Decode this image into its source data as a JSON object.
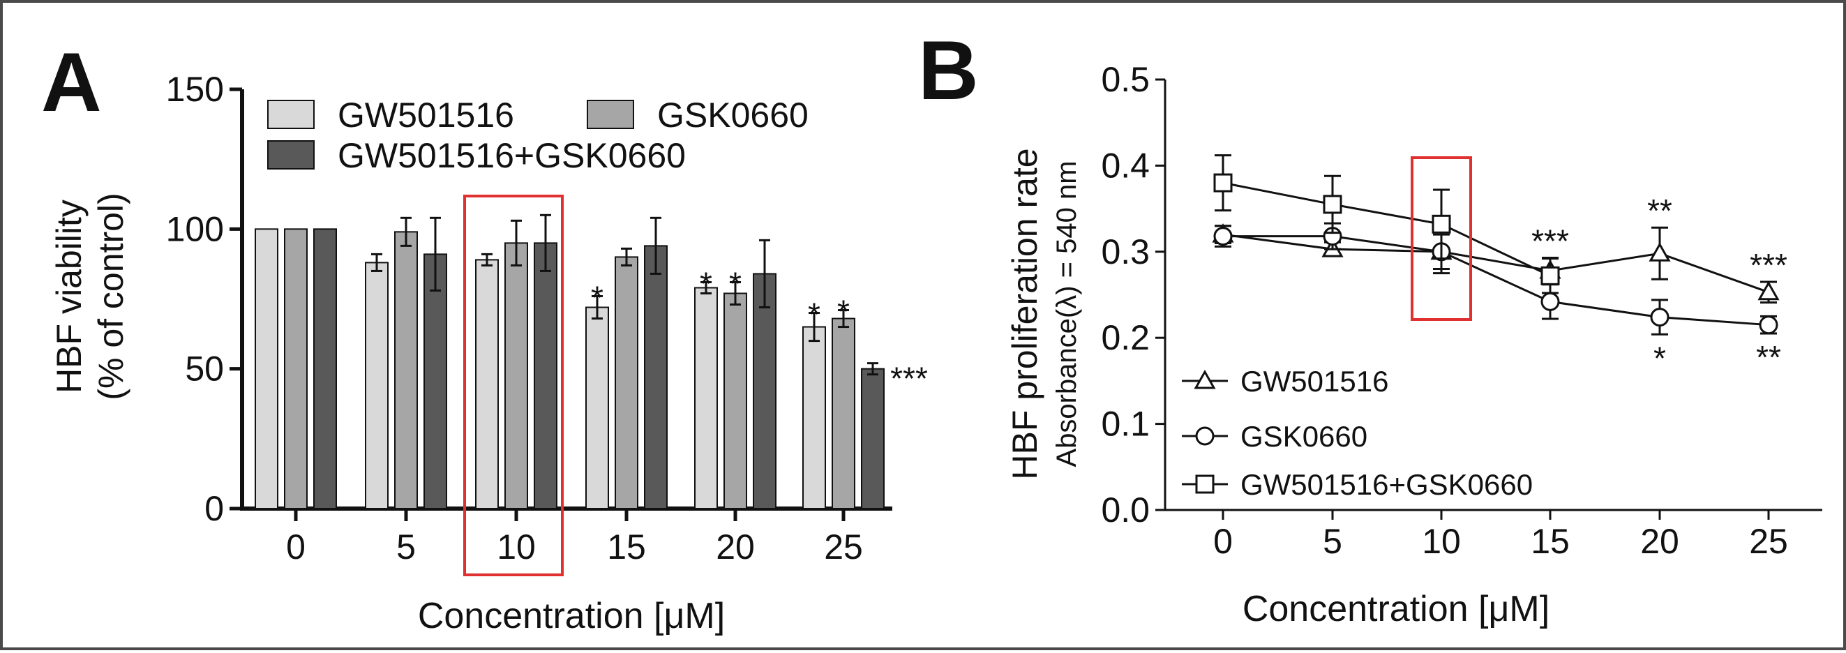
{
  "chart_data": [
    {
      "panel_label": "A",
      "type": "bar",
      "title": "",
      "ylabel": "HBF viability",
      "ylabel2": "(% of control)",
      "xlabel": "Concentration [μM]",
      "ylim": [
        0,
        150
      ],
      "yticks": [
        0,
        50,
        100,
        150
      ],
      "categories": [
        "0",
        "5",
        "10",
        "15",
        "20",
        "25"
      ],
      "highlight_category": "10",
      "legend_position": "top",
      "series": [
        {
          "name": "GW501516",
          "color": "#d9d9d9",
          "values": [
            100,
            88,
            89,
            72,
            79,
            65
          ],
          "errors": [
            0,
            3,
            2,
            4,
            2,
            5
          ],
          "sig": [
            "",
            "",
            "",
            "*",
            "*",
            "*"
          ]
        },
        {
          "name": "GSK0660",
          "color": "#a6a6a6",
          "values": [
            100,
            99,
            95,
            90,
            77,
            68
          ],
          "errors": [
            0,
            5,
            8,
            3,
            4,
            3
          ],
          "sig": [
            "",
            "",
            "",
            "",
            "*",
            "*"
          ]
        },
        {
          "name": "GW501516+GSK0660",
          "color": "#595959",
          "values": [
            100,
            91,
            95,
            94,
            84,
            50
          ],
          "errors": [
            0,
            13,
            10,
            10,
            12,
            2
          ],
          "sig": [
            "",
            "",
            "",
            "",
            "",
            "***"
          ]
        }
      ]
    },
    {
      "panel_label": "B",
      "type": "line",
      "title": "",
      "ylabel": "HBF proliferation rate",
      "ylabel2": "Absorbance(λ) = 540 nm",
      "xlabel": "Concentration [μM]",
      "x": [
        "0",
        "5",
        "10",
        "15",
        "20",
        "25"
      ],
      "ylim": [
        0.0,
        0.5
      ],
      "yticks": [
        "0.0",
        "0.1",
        "0.2",
        "0.3",
        "0.4",
        "0.5"
      ],
      "highlight_category": "10",
      "legend_position": "bottom-left",
      "series": [
        {
          "name": "GW501516",
          "marker": "triangle",
          "values": [
            0.32,
            0.303,
            0.3,
            0.278,
            0.298,
            0.253
          ],
          "errors": [
            0.01,
            0.008,
            0.02,
            0.015,
            0.03,
            0.012
          ],
          "sig": [
            "",
            "",
            "",
            "***",
            "**",
            "***"
          ],
          "sig_pos": [
            "",
            "",
            "",
            "above",
            "above",
            "above"
          ]
        },
        {
          "name": "GSK0660",
          "marker": "circle",
          "values": [
            0.318,
            0.318,
            0.3,
            0.242,
            0.224,
            0.215
          ],
          "errors": [
            0.012,
            0.015,
            0.025,
            0.02,
            0.02,
            0.01
          ],
          "sig": [
            "",
            "",
            "",
            "",
            "*",
            "**"
          ],
          "sig_pos": [
            "",
            "",
            "",
            "",
            "below",
            "below"
          ]
        },
        {
          "name": "GW501516+GSK0660",
          "marker": "square",
          "values": [
            0.38,
            0.355,
            0.332,
            0.272,
            null,
            null
          ],
          "errors": [
            0.032,
            0.033,
            0.04,
            0.02,
            null,
            null
          ],
          "sig": [
            "",
            "",
            "",
            "",
            "",
            ""
          ],
          "sig_pos": [
            "",
            "",
            "",
            "",
            "",
            ""
          ]
        }
      ]
    }
  ]
}
